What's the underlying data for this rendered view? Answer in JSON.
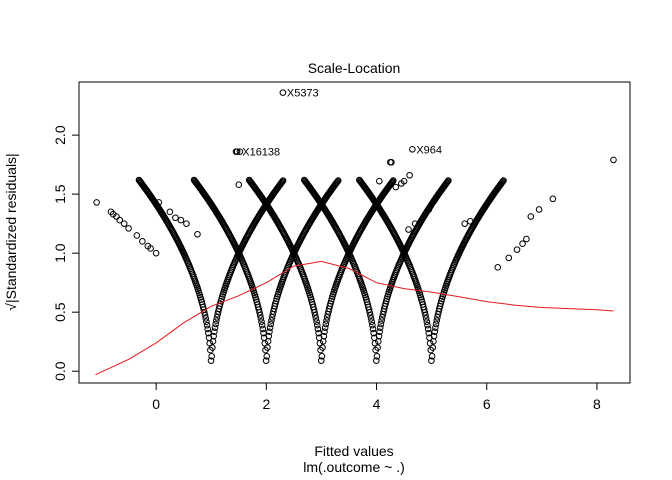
{
  "chart_data": {
    "type": "scatter",
    "title": "Scale-Location",
    "xlabel": "Fitted values",
    "xlabel_sub": "lm(.outcome ~ .)",
    "ylabel": "√|Standardized residuals|",
    "xlim": [
      -1.4,
      8.6
    ],
    "ylim": [
      -0.1,
      2.45
    ],
    "x_ticks": [
      0,
      2,
      4,
      6,
      8
    ],
    "y_ticks": [
      0.0,
      0.5,
      1.0,
      1.5,
      2.0
    ],
    "x_tick_labels": [
      "0",
      "2",
      "4",
      "6",
      "8"
    ],
    "y_tick_labels": [
      "0.0",
      "0.5",
      "1.0",
      "1.5",
      "2.0"
    ],
    "point_color": "#000000",
    "smooth_color": "#e41a1c",
    "point_shape": "open-circle",
    "vertex_outcomes": [
      1,
      2,
      3,
      4,
      5
    ],
    "curve_scale_k": 0.5,
    "series": [
      {
        "points": [
          [
            -1.08,
            1.43
          ],
          [
            -0.82,
            1.35
          ],
          [
            -0.78,
            1.33
          ],
          [
            -0.72,
            1.31
          ],
          [
            -0.66,
            1.28
          ],
          [
            -0.58,
            1.25
          ],
          [
            -0.5,
            1.21
          ],
          [
            -0.35,
            1.15
          ],
          [
            -0.25,
            1.1
          ],
          [
            -0.15,
            1.06
          ],
          [
            -0.1,
            1.04
          ],
          [
            0.0,
            1.0
          ],
          [
            0.05,
            1.43
          ],
          [
            0.25,
            1.35
          ],
          [
            0.35,
            1.3
          ],
          [
            0.45,
            1.28
          ],
          [
            0.55,
            1.25
          ],
          [
            0.75,
            1.16
          ],
          [
            1.5,
            1.58
          ],
          [
            1.45,
            1.86
          ],
          [
            1.47,
            1.86
          ],
          [
            1.52,
            1.86
          ],
          [
            2.3,
            2.36
          ],
          [
            4.25,
            1.77
          ],
          [
            4.27,
            1.77
          ],
          [
            4.65,
            1.88
          ],
          [
            4.05,
            1.61
          ],
          [
            4.35,
            1.56
          ],
          [
            4.45,
            1.59
          ],
          [
            4.5,
            1.61
          ],
          [
            4.6,
            1.66
          ],
          [
            4.58,
            1.2
          ],
          [
            4.7,
            1.25
          ],
          [
            4.95,
            1.37
          ],
          [
            5.6,
            1.25
          ],
          [
            5.7,
            1.27
          ],
          [
            6.8,
            1.31
          ],
          [
            6.95,
            1.37
          ],
          [
            7.2,
            1.46
          ],
          [
            8.3,
            1.79
          ],
          [
            6.2,
            0.88
          ],
          [
            6.4,
            0.96
          ],
          [
            6.55,
            1.03
          ],
          [
            6.65,
            1.08
          ],
          [
            6.72,
            1.12
          ]
        ]
      },
      {
        "name": "",
        "type": "smooth",
        "points": [
          [
            -1.1,
            -0.03
          ],
          [
            -0.5,
            0.1
          ],
          [
            0.0,
            0.24
          ],
          [
            0.5,
            0.41
          ],
          [
            1.0,
            0.55
          ],
          [
            1.5,
            0.64
          ],
          [
            2.0,
            0.75
          ],
          [
            2.5,
            0.89
          ],
          [
            3.0,
            0.93
          ],
          [
            3.5,
            0.87
          ],
          [
            4.0,
            0.75
          ],
          [
            4.5,
            0.7
          ],
          [
            5.0,
            0.67
          ],
          [
            5.5,
            0.63
          ],
          [
            6.0,
            0.59
          ],
          [
            6.5,
            0.56
          ],
          [
            7.0,
            0.54
          ],
          [
            7.5,
            0.53
          ],
          [
            8.0,
            0.52
          ],
          [
            8.3,
            0.51
          ]
        ]
      }
    ],
    "annotations": [
      {
        "text": "X5373",
        "x": 2.3,
        "y": 2.36
      },
      {
        "text": "X16138",
        "x": 1.49,
        "y": 1.86
      },
      {
        "text": "X964",
        "x": 4.65,
        "y": 1.88
      }
    ]
  }
}
